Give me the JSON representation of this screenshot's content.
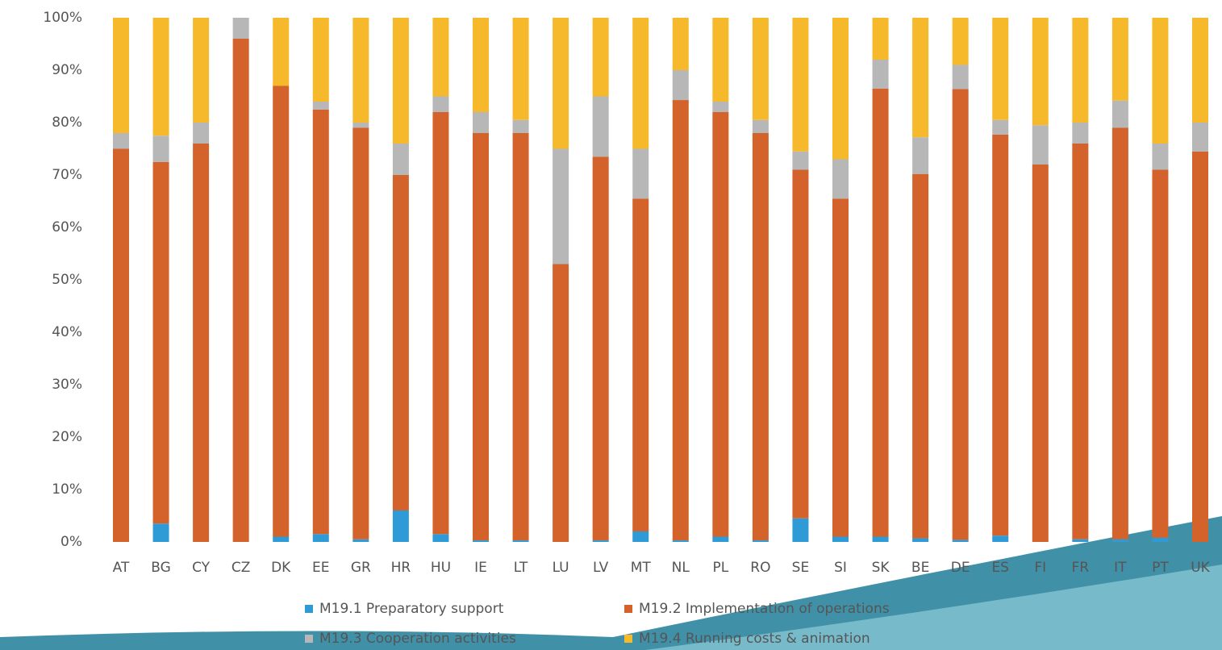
{
  "chart_data": {
    "type": "stacked_bar",
    "categories": [
      "AT",
      "BG",
      "CY",
      "CZ",
      "DK",
      "EE",
      "GR",
      "HR",
      "HU",
      "IE",
      "LT",
      "LU",
      "LV",
      "MT",
      "NL",
      "PL",
      "RO",
      "SE",
      "SI",
      "SK",
      "BE",
      "DE",
      "ES",
      "FI",
      "FR",
      "IT",
      "PT",
      "UK"
    ],
    "series": [
      {
        "name": "M19.1 Preparatory support",
        "color": "#2e9bd6",
        "values": [
          0,
          3.5,
          0,
          0,
          1,
          1.5,
          0.5,
          6,
          1.5,
          0.3,
          0.3,
          0,
          0.3,
          2,
          0.3,
          1,
          0.3,
          4.5,
          1,
          1,
          0.7,
          0.4,
          1.2,
          0,
          0.5,
          0.5,
          0.8,
          0
        ]
      },
      {
        "name": "M19.2 Implementation of operations",
        "color": "#d4622b",
        "values": [
          75,
          69,
          76,
          96,
          86,
          81,
          78.5,
          64,
          80.5,
          77.7,
          77.7,
          53,
          73.2,
          63.5,
          84,
          81,
          77.7,
          66.5,
          64.5,
          85.5,
          69.5,
          86,
          76.5,
          72,
          75.5,
          78.5,
          70.2,
          74.5
        ]
      },
      {
        "name": "M19.3 Cooperation activities",
        "color": "#b7b7b7",
        "values": [
          3,
          5,
          4,
          4,
          0,
          1.5,
          1,
          6,
          3,
          4,
          2.5,
          22,
          11.5,
          9.5,
          5.7,
          2,
          2.5,
          3.5,
          7.5,
          5.5,
          7,
          4.6,
          2.8,
          7.5,
          4,
          5.2,
          5,
          5.5
        ]
      },
      {
        "name": "M19.4 Running costs & animation",
        "color": "#f7b92c",
        "values": [
          22,
          22.5,
          20,
          0,
          13,
          16,
          20,
          24,
          15,
          18,
          19.5,
          25,
          15,
          25,
          10,
          16,
          19.5,
          25.5,
          27,
          8,
          22.8,
          9,
          19.5,
          20.5,
          20,
          15.8,
          24,
          20
        ]
      }
    ],
    "ylim": [
      0,
      100
    ],
    "yticks": [
      {
        "value": 0,
        "label": "0%"
      },
      {
        "value": 10,
        "label": "10%"
      },
      {
        "value": 20,
        "label": "20%"
      },
      {
        "value": 30,
        "label": "30%"
      },
      {
        "value": 40,
        "label": "40%"
      },
      {
        "value": 50,
        "label": "50%"
      },
      {
        "value": 60,
        "label": "60%"
      },
      {
        "value": 70,
        "label": "70%"
      },
      {
        "value": 80,
        "label": "80%"
      },
      {
        "value": 90,
        "label": "90%"
      },
      {
        "value": 100,
        "label": "100%"
      }
    ],
    "grid": false
  }
}
